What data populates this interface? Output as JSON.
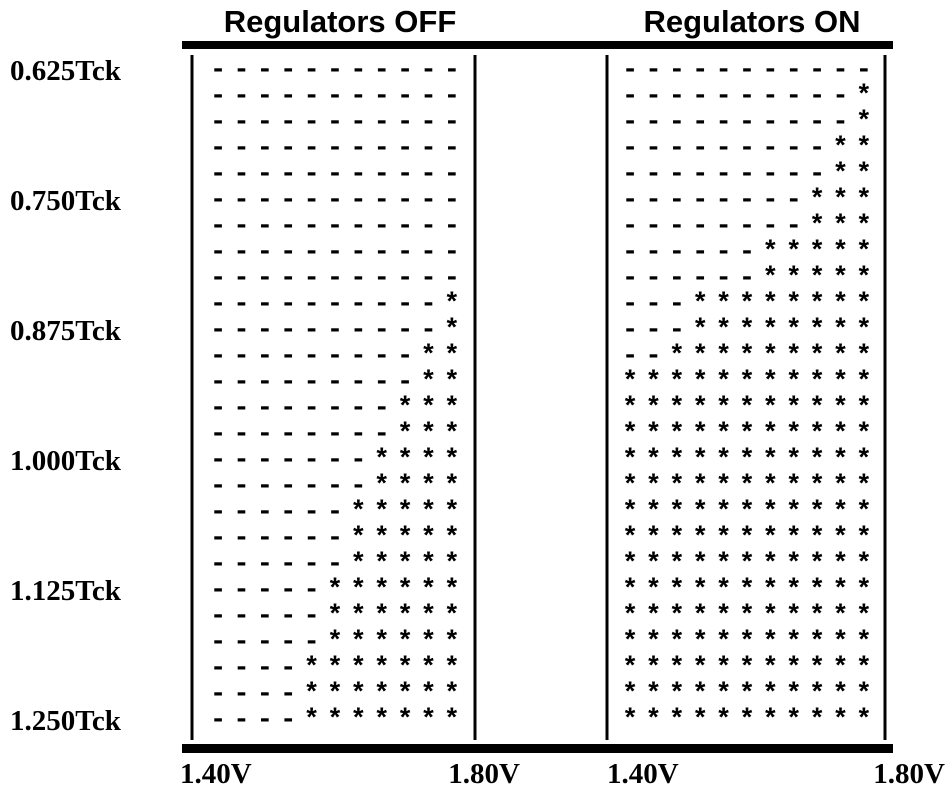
{
  "row_labels": [
    "0.625Tck",
    null,
    null,
    null,
    null,
    "0.750Tck",
    null,
    null,
    null,
    null,
    "0.875Tck",
    null,
    null,
    null,
    null,
    "1.000Tck",
    null,
    null,
    null,
    null,
    "1.125Tck",
    null,
    null,
    null,
    null,
    "1.250Tck"
  ],
  "panels": [
    {
      "title": "Regulators OFF",
      "x_labels": [
        "1.40V",
        "1.80V"
      ],
      "rows": [
        "-----------",
        "-----------",
        "-----------",
        "-----------",
        "-----------",
        "-----------",
        "-----------",
        "-----------",
        "-----------",
        "----------*",
        "----------*",
        "---------**",
        "---------**",
        "--------***",
        "--------***",
        "-------****",
        "-------****",
        "------*****",
        "------*****",
        "------*****",
        "-----******",
        "-----******",
        "-----******",
        "----*******",
        "----*******",
        "----*******"
      ]
    },
    {
      "title": "Regulators ON",
      "x_labels": [
        "1.40V",
        "1.80V"
      ],
      "rows": [
        "-----------",
        "----------*",
        "----------*",
        "---------**",
        "---------**",
        "--------***",
        "--------***",
        "------*****",
        "------*****",
        "---********",
        "---********",
        "--*********",
        "***********",
        "***********",
        "***********",
        "***********",
        "***********",
        "***********",
        "***********",
        "***********",
        "***********",
        "***********",
        "***********",
        "***********",
        "***********",
        "***********"
      ]
    }
  ]
}
